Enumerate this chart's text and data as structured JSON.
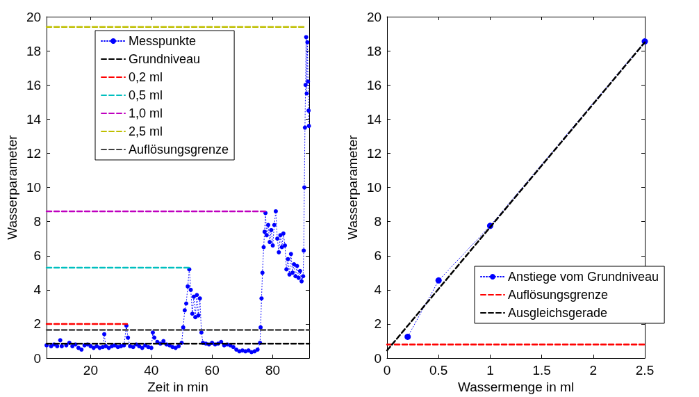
{
  "chart_data": [
    {
      "type": "line",
      "xlabel": "Zeit in min",
      "ylabel": "Wasserparameter",
      "xlim": [
        5.5,
        92
      ],
      "xticks": [
        20,
        40,
        60,
        80
      ],
      "ylim": [
        0,
        20
      ],
      "yticks": [
        0,
        2,
        4,
        6,
        8,
        10,
        12,
        14,
        16,
        18,
        20
      ],
      "grid": false,
      "legend": "top",
      "series": [
        {
          "name": "Messpunkte",
          "color": "#0000ff",
          "marker": "circle",
          "line_style": "dotted",
          "x": [
            5.5,
            7,
            8,
            9,
            10,
            10.5,
            12,
            13,
            14,
            15,
            16,
            17,
            18,
            19,
            20,
            21,
            22,
            23,
            24,
            24.5,
            25,
            26,
            27,
            28,
            29,
            30,
            31,
            31.8,
            32.3,
            33,
            34,
            35,
            36,
            37,
            38,
            39,
            40,
            40.5,
            41,
            42,
            43,
            44,
            45,
            46,
            47,
            48,
            49,
            50,
            50.5,
            51,
            51.5,
            52,
            52.5,
            53,
            53.5,
            54,
            54.5,
            55,
            55.5,
            56,
            56.5,
            57,
            58,
            59,
            60,
            61,
            62,
            63,
            64,
            65,
            66,
            67,
            68,
            69,
            70,
            71,
            72,
            73,
            74,
            75,
            75.8,
            76,
            76.3,
            76.6,
            77,
            77.3,
            77.6,
            78,
            78.5,
            79,
            79.5,
            80,
            80.5,
            81,
            81.5,
            82,
            82.5,
            83,
            83.5,
            84,
            84.5,
            85,
            85.5,
            86,
            86.5,
            87,
            87.5,
            88,
            88.5,
            89,
            89.5,
            90,
            90.2,
            90.4,
            90.6,
            90.8,
            91,
            91.2,
            91.4,
            91.6,
            91.8,
            91.9
          ],
          "values": [
            0.75,
            0.7,
            0.8,
            0.7,
            1.05,
            0.7,
            0.75,
            0.9,
            0.7,
            0.8,
            0.6,
            0.5,
            0.75,
            0.8,
            0.7,
            0.6,
            0.7,
            0.6,
            0.65,
            1.4,
            0.7,
            0.6,
            0.7,
            0.75,
            0.65,
            0.7,
            0.75,
            1.9,
            1.2,
            0.7,
            0.65,
            0.8,
            0.7,
            0.6,
            0.75,
            0.65,
            0.6,
            1.5,
            1.2,
            0.95,
            0.85,
            1.0,
            0.8,
            0.75,
            0.65,
            0.6,
            0.7,
            0.9,
            1.8,
            2.8,
            3.2,
            4.2,
            5.2,
            4.0,
            2.6,
            3.6,
            2.4,
            3.7,
            2.5,
            3.5,
            1.5,
            0.9,
            0.85,
            0.8,
            0.9,
            0.8,
            0.85,
            0.95,
            0.75,
            0.8,
            0.75,
            0.65,
            0.5,
            0.4,
            0.45,
            0.4,
            0.45,
            0.35,
            0.4,
            0.5,
            0.9,
            1.8,
            3.5,
            5.0,
            6.5,
            7.4,
            8.5,
            7.2,
            7.8,
            6.8,
            7.5,
            6.6,
            7.8,
            8.6,
            7.0,
            6.2,
            7.2,
            6.5,
            7.3,
            6.6,
            5.2,
            5.8,
            4.9,
            6.1,
            5.0,
            5.5,
            4.8,
            5.4,
            4.7,
            5.1,
            4.5,
            4.8,
            6.3,
            10.0,
            13.5,
            16,
            18.8,
            15.5,
            18.5,
            16.2,
            14.5,
            13.6
          ]
        },
        {
          "name": "Grundniveau",
          "color": "#000000",
          "marker": "none",
          "line_style": "dashed",
          "x": [
            5.5,
            92
          ],
          "values": [
            0.85,
            0.85
          ]
        },
        {
          "name": "0,2 ml",
          "color": "#ff0000",
          "marker": "none",
          "line_style": "dashed",
          "x": [
            5.5,
            32
          ],
          "values": [
            2.0,
            2.0
          ]
        },
        {
          "name": "0,5 ml",
          "color": "#00bfbf",
          "marker": "none",
          "line_style": "dashed",
          "x": [
            5.5,
            52.5
          ],
          "values": [
            5.3,
            5.3
          ]
        },
        {
          "name": "1,0 ml",
          "color": "#bf00bf",
          "marker": "none",
          "line_style": "dashed",
          "x": [
            5.5,
            77.5
          ],
          "values": [
            8.6,
            8.6
          ]
        },
        {
          "name": "2,5 ml",
          "color": "#bfbf00",
          "marker": "none",
          "line_style": "dashed",
          "x": [
            5.5,
            90.5
          ],
          "values": [
            19.4,
            19.4
          ]
        },
        {
          "name": "Auflösungsgrenze",
          "color": "#404040",
          "marker": "none",
          "line_style": "dashed",
          "x": [
            5.5,
            92
          ],
          "values": [
            1.65,
            1.65
          ]
        }
      ]
    },
    {
      "type": "line",
      "xlabel": "Wassermenge in ml",
      "ylabel": "Wasserparameter",
      "xlim": [
        0,
        2.5
      ],
      "xticks": [
        0,
        0.5,
        1,
        1.5,
        2,
        2.5
      ],
      "ylim": [
        0,
        20
      ],
      "yticks": [
        0,
        2,
        4,
        6,
        8,
        10,
        12,
        14,
        16,
        18,
        20
      ],
      "grid": false,
      "legend": "right",
      "series": [
        {
          "name": "Anstiege vom Grundniveau",
          "color": "#0000ff",
          "marker": "circle",
          "line_style": "dotted",
          "x": [
            0.2,
            0.5,
            1,
            2.5
          ],
          "values": [
            1.25,
            4.55,
            7.75,
            18.55
          ]
        },
        {
          "name": "Auflösungsgrenze",
          "color": "#ff0000",
          "marker": "none",
          "line_style": "dashed",
          "x": [
            0,
            2.5
          ],
          "values": [
            0.8,
            0.8
          ]
        },
        {
          "name": "Ausgleichsgerade",
          "color": "#000000",
          "marker": "none",
          "line_style": "dashed",
          "x": [
            0,
            2.5
          ],
          "values": [
            0.45,
            18.5
          ]
        }
      ]
    }
  ]
}
